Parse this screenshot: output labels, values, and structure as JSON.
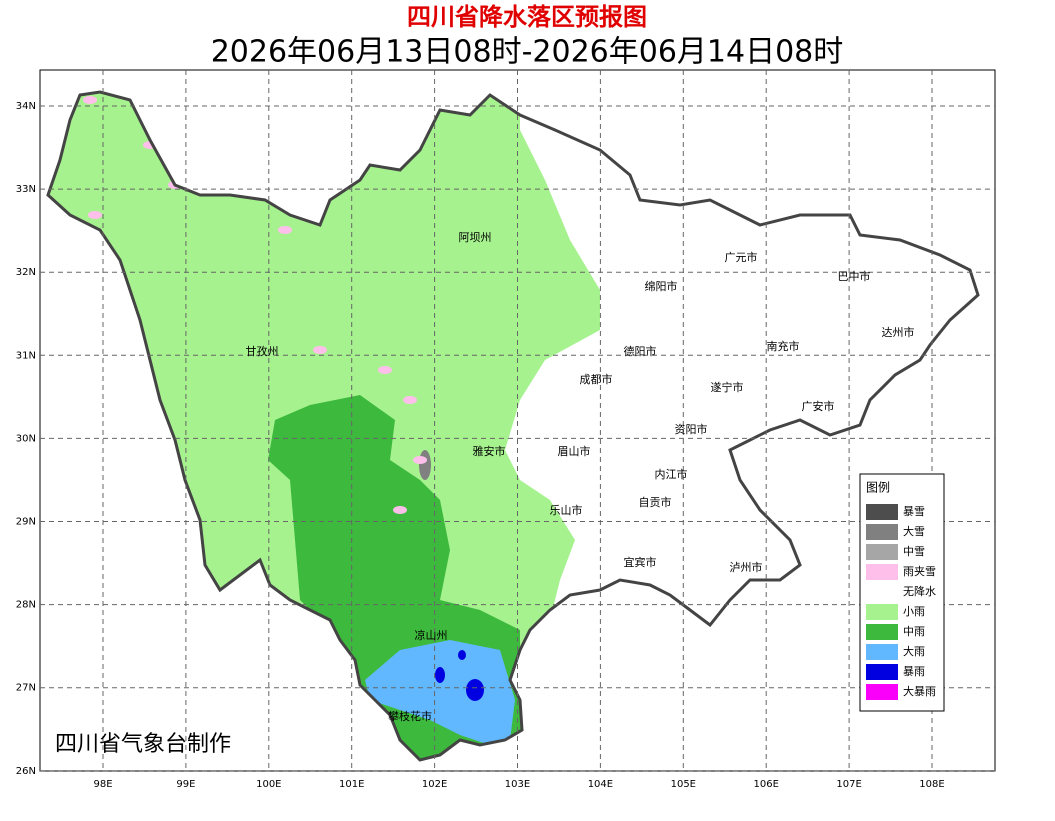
{
  "title": "四川省降水落区预报图",
  "subtitle": "2026年06月13日08时-2026年06月14日08时",
  "credit": "四川省气象台制作",
  "lat_labels": [
    "34N",
    "33N",
    "32N",
    "31N",
    "30N",
    "29N",
    "28N",
    "27N",
    "26N"
  ],
  "lon_labels": [
    "98E",
    "99E",
    "100E",
    "101E",
    "102E",
    "103E",
    "104E",
    "105E",
    "106E",
    "107E",
    "108E"
  ],
  "places": [
    "阿坝州",
    "广元市",
    "巴中市",
    "绵阳市",
    "达州市",
    "甘孜州",
    "德阳市",
    "南充市",
    "成都市",
    "遂宁市",
    "广安市",
    "资阳市",
    "雅安市",
    "眉山市",
    "内江市",
    "自贡市",
    "乐山市",
    "宜宾市",
    "泸州市",
    "凉山州",
    "攀枝花市"
  ],
  "legend": {
    "title": "图例",
    "items": [
      {
        "label": "暴雪",
        "color": "#4d4d4d"
      },
      {
        "label": "大雪",
        "color": "#808080"
      },
      {
        "label": "中雪",
        "color": "#a6a6a6"
      },
      {
        "label": "雨夹雪",
        "color": "#ffbfeb"
      },
      {
        "label": "无降水",
        "color": "#ffffff"
      },
      {
        "label": "小雨",
        "color": "#a6f28f"
      },
      {
        "label": "中雨",
        "color": "#3dba3d"
      },
      {
        "label": "大雨",
        "color": "#61b8ff"
      },
      {
        "label": "暴雨",
        "color": "#0000e1"
      },
      {
        "label": "大暴雨",
        "color": "#fa00fa"
      }
    ]
  }
}
